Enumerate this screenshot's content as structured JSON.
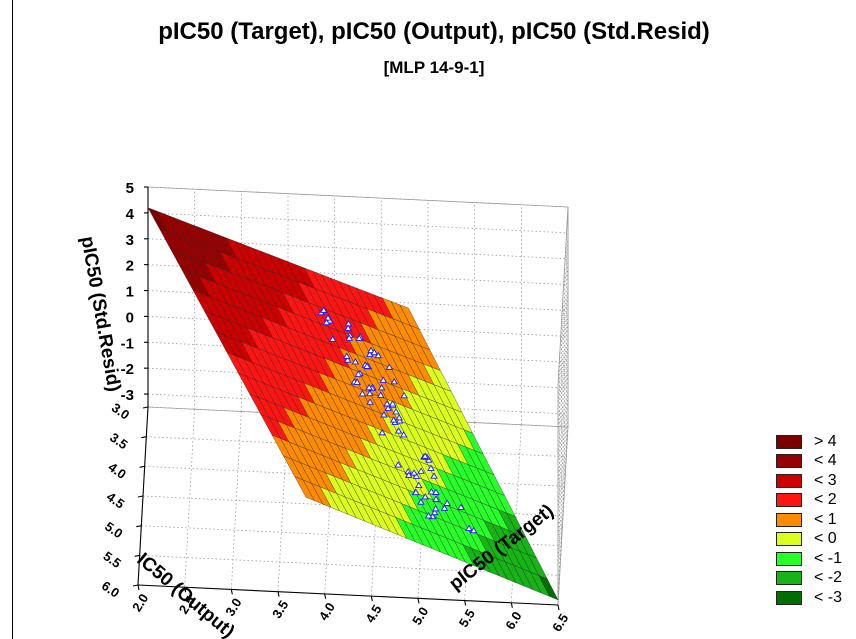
{
  "chart_data": {
    "type": "surface3d",
    "title": "pIC50 (Target), pIC50 (Output), pIC50 (Std.Resid)",
    "subtitle": "[MLP 14-9-1]",
    "xlabel": "pIC50 (Target)",
    "ylabel": "IC50 (Output)",
    "zlabel": "pIC50 (Std.Resid)",
    "x_ticks": [
      "2.0",
      "2.5",
      "3.0",
      "3.5",
      "4.0",
      "4.5",
      "5.0",
      "5.5",
      "6.0",
      "6.5"
    ],
    "y_ticks": [
      "3.0",
      "3.5",
      "4.0",
      "4.5",
      "5.0",
      "5.5",
      "6.0"
    ],
    "z_ticks": [
      "5",
      "4",
      "3",
      "2",
      "1",
      "0",
      "-1",
      "-2",
      "-3"
    ],
    "xlim": [
      2.0,
      6.5
    ],
    "ylim": [
      3.0,
      6.0
    ],
    "zlim": [
      -3.5,
      5
    ],
    "surface": {
      "z_at_xmin": 4.2,
      "z_at_xmax": -3.5
    },
    "legend": [
      {
        "label": "> 4",
        "color": "#7a0000"
      },
      {
        "label": "< 4",
        "color": "#960000"
      },
      {
        "label": "< 3",
        "color": "#cc0000"
      },
      {
        "label": "< 2",
        "color": "#ff1414"
      },
      {
        "label": "< 1",
        "color": "#ff8c00"
      },
      {
        "label": "< 0",
        "color": "#dcff1e"
      },
      {
        "label": "< -1",
        "color": "#28ff28"
      },
      {
        "label": "< -2",
        "color": "#16b416"
      },
      {
        "label": "< -3",
        "color": "#006e00"
      }
    ],
    "grid": true,
    "legend_position": "bottom-right"
  }
}
